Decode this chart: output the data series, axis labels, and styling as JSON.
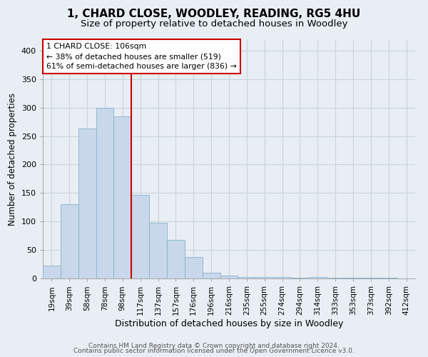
{
  "title": "1, CHARD CLOSE, WOODLEY, READING, RG5 4HU",
  "subtitle": "Size of property relative to detached houses in Woodley",
  "xlabel": "Distribution of detached houses by size in Woodley",
  "ylabel": "Number of detached properties",
  "bar_labels": [
    "19sqm",
    "39sqm",
    "58sqm",
    "78sqm",
    "98sqm",
    "117sqm",
    "137sqm",
    "157sqm",
    "176sqm",
    "196sqm",
    "216sqm",
    "235sqm",
    "255sqm",
    "274sqm",
    "294sqm",
    "314sqm",
    "333sqm",
    "353sqm",
    "373sqm",
    "392sqm",
    "412sqm"
  ],
  "bar_heights": [
    22,
    130,
    263,
    300,
    285,
    147,
    98,
    68,
    37,
    10,
    5,
    2,
    3,
    2,
    1,
    2,
    1,
    1,
    1,
    1,
    0
  ],
  "bar_color": "#c8d8ea",
  "bar_edge_color": "#8ab0cc",
  "bar_width": 1.0,
  "property_line_x": 4.5,
  "property_line_color": "#cc0000",
  "ylim": [
    0,
    420
  ],
  "yticks": [
    0,
    50,
    100,
    150,
    200,
    250,
    300,
    350,
    400
  ],
  "annotation_text": "1 CHARD CLOSE: 106sqm\n← 38% of detached houses are smaller (519)\n61% of semi-detached houses are larger (836) →",
  "annotation_box_color": "#ffffff",
  "annotation_box_edge": "#cc0000",
  "footer_line1": "Contains HM Land Registry data © Crown copyright and database right 2024.",
  "footer_line2": "Contains public sector information licensed under the Open Government Licence v3.0.",
  "background_color": "#e8eef4",
  "plot_bg_color": "#e8eef4",
  "grid_color": "#c8d4dc",
  "title_fontsize": 11,
  "subtitle_fontsize": 9.5,
  "xlabel_fontsize": 9,
  "ylabel_fontsize": 8.5,
  "footer_fontsize": 6.5,
  "tick_fontsize": 7.5,
  "ytick_fontsize": 8
}
